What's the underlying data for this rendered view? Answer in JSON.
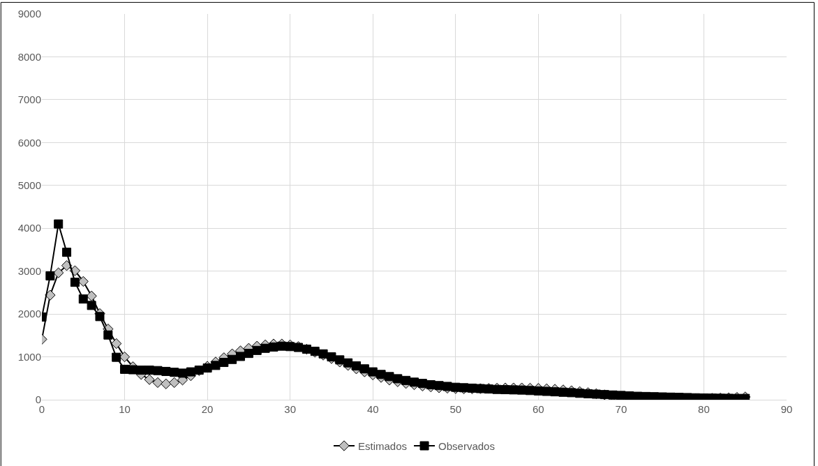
{
  "chart_data": {
    "type": "line",
    "x": [
      0,
      1,
      2,
      3,
      4,
      5,
      6,
      7,
      8,
      9,
      10,
      11,
      12,
      13,
      14,
      15,
      16,
      17,
      18,
      19,
      20,
      21,
      22,
      23,
      24,
      25,
      26,
      27,
      28,
      29,
      30,
      31,
      32,
      33,
      34,
      35,
      36,
      37,
      38,
      39,
      40,
      41,
      42,
      43,
      44,
      45,
      46,
      47,
      48,
      49,
      50,
      51,
      52,
      53,
      54,
      55,
      56,
      57,
      58,
      59,
      60,
      61,
      62,
      63,
      64,
      65,
      66,
      67,
      68,
      69,
      70,
      71,
      72,
      73,
      74,
      75,
      76,
      77,
      78,
      79,
      80,
      81,
      82,
      83,
      84,
      85
    ],
    "series": [
      {
        "name": "Estimados",
        "color": "#bfbfbf",
        "marker": "diamond",
        "values": [
          1410,
          2440,
          2960,
          3130,
          3010,
          2760,
          2420,
          2010,
          1650,
          1310,
          1000,
          770,
          590,
          470,
          400,
          370,
          400,
          460,
          560,
          680,
          780,
          880,
          980,
          1070,
          1140,
          1200,
          1250,
          1280,
          1300,
          1300,
          1280,
          1240,
          1180,
          1110,
          1040,
          960,
          880,
          800,
          720,
          650,
          580,
          520,
          460,
          420,
          380,
          350,
          320,
          300,
          280,
          270,
          260,
          255,
          255,
          260,
          265,
          270,
          275,
          275,
          275,
          270,
          265,
          255,
          245,
          230,
          210,
          190,
          165,
          140,
          115,
          90,
          65,
          45,
          30,
          25,
          25,
          25,
          25,
          25,
          25,
          25,
          30,
          35,
          40,
          45,
          55,
          65
        ]
      },
      {
        "name": "Observados",
        "color": "#000000",
        "marker": "square",
        "values": [
          1930,
          2890,
          4100,
          3440,
          2740,
          2350,
          2200,
          1940,
          1510,
          990,
          710,
          700,
          690,
          690,
          680,
          660,
          640,
          620,
          650,
          690,
          740,
          800,
          870,
          940,
          1010,
          1080,
          1150,
          1200,
          1230,
          1250,
          1240,
          1220,
          1180,
          1130,
          1070,
          1000,
          930,
          860,
          790,
          720,
          650,
          590,
          540,
          490,
          450,
          410,
          380,
          350,
          330,
          310,
          290,
          280,
          270,
          260,
          250,
          240,
          235,
          230,
          225,
          215,
          205,
          195,
          185,
          175,
          165,
          150,
          140,
          130,
          120,
          110,
          100,
          90,
          80,
          75,
          70,
          65,
          60,
          55,
          50,
          45,
          40,
          38,
          35,
          33,
          30,
          30
        ]
      }
    ],
    "xlim": [
      0,
      90
    ],
    "xticks": [
      0,
      10,
      20,
      30,
      40,
      50,
      60,
      70,
      80,
      90
    ],
    "ylim": [
      0,
      9000
    ],
    "yticks": [
      0,
      1000,
      2000,
      3000,
      4000,
      5000,
      6000,
      7000,
      8000,
      9000
    ],
    "grid": true,
    "legend": "bottom",
    "line_style": "solid"
  }
}
